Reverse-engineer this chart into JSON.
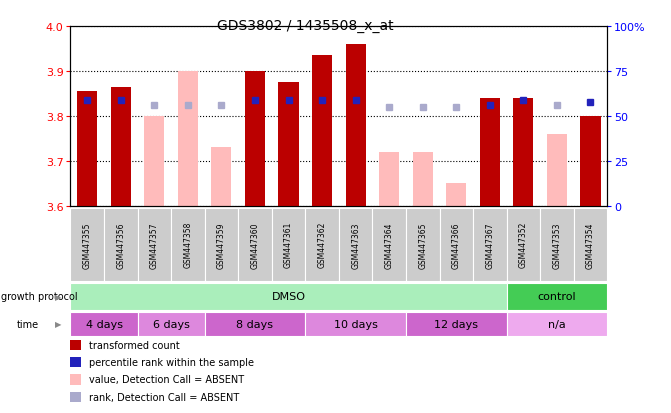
{
  "title": "GDS3802 / 1435508_x_at",
  "samples": [
    "GSM447355",
    "GSM447356",
    "GSM447357",
    "GSM447358",
    "GSM447359",
    "GSM447360",
    "GSM447361",
    "GSM447362",
    "GSM447363",
    "GSM447364",
    "GSM447365",
    "GSM447366",
    "GSM447367",
    "GSM447352",
    "GSM447353",
    "GSM447354"
  ],
  "red_values": [
    3.855,
    3.865,
    null,
    null,
    null,
    3.9,
    3.875,
    3.935,
    3.96,
    null,
    null,
    null,
    3.84,
    3.84,
    null,
    3.8
  ],
  "pink_values": [
    null,
    null,
    3.8,
    3.9,
    3.73,
    null,
    null,
    null,
    null,
    3.72,
    3.72,
    3.65,
    null,
    null,
    3.76,
    null
  ],
  "blue_sq_values": [
    3.835,
    3.835,
    3.825,
    3.825,
    3.825,
    3.835,
    3.835,
    3.835,
    3.835,
    3.82,
    3.82,
    3.82,
    3.825,
    3.835,
    3.825,
    3.83
  ],
  "blue_sq_absent": [
    false,
    false,
    true,
    true,
    true,
    false,
    false,
    false,
    false,
    true,
    true,
    true,
    false,
    false,
    true,
    false
  ],
  "ylim": [
    3.6,
    4.0
  ],
  "y2lim": [
    0,
    100
  ],
  "yticks": [
    3.6,
    3.7,
    3.8,
    3.9,
    4.0
  ],
  "y2ticks": [
    0,
    25,
    50,
    75,
    100
  ],
  "y2ticklabels": [
    "0",
    "25",
    "50",
    "75",
    "100%"
  ],
  "bar_width": 0.6,
  "red_color": "#bb0000",
  "pink_color": "#ffbbbb",
  "blue_color": "#2222bb",
  "blue_absent_color": "#aaaacc",
  "groups_gp": [
    {
      "label": "DMSO",
      "start": 0,
      "end": 12,
      "color": "#aaeebb"
    },
    {
      "label": "control",
      "start": 13,
      "end": 15,
      "color": "#44cc55"
    }
  ],
  "groups_time": [
    {
      "label": "4 days",
      "start": 0,
      "end": 1,
      "color": "#cc66cc"
    },
    {
      "label": "6 days",
      "start": 2,
      "end": 3,
      "color": "#dd88dd"
    },
    {
      "label": "8 days",
      "start": 4,
      "end": 6,
      "color": "#cc66cc"
    },
    {
      "label": "10 days",
      "start": 7,
      "end": 9,
      "color": "#dd88dd"
    },
    {
      "label": "12 days",
      "start": 10,
      "end": 12,
      "color": "#cc66cc"
    },
    {
      "label": "n/a",
      "start": 13,
      "end": 15,
      "color": "#eeaaee"
    }
  ],
  "legend_items": [
    {
      "label": "transformed count",
      "color": "#bb0000"
    },
    {
      "label": "percentile rank within the sample",
      "color": "#2222bb"
    },
    {
      "label": "value, Detection Call = ABSENT",
      "color": "#ffbbbb"
    },
    {
      "label": "rank, Detection Call = ABSENT",
      "color": "#aaaacc"
    }
  ]
}
